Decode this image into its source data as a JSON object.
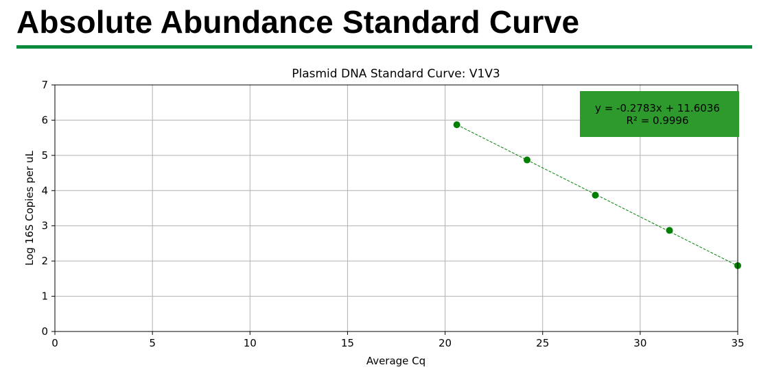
{
  "page": {
    "title": "Absolute Abundance Standard Curve",
    "rule_color": "#0a8a3c"
  },
  "chart_data": {
    "type": "scatter",
    "title": "Plasmid DNA Standard Curve: V1V3",
    "xlabel": "Average Cq",
    "ylabel": "Log 16S Copies per uL",
    "xlim": [
      0,
      35
    ],
    "ylim": [
      0,
      7
    ],
    "xticks": [
      0,
      5,
      10,
      15,
      20,
      25,
      30,
      35
    ],
    "yticks": [
      0,
      1,
      2,
      3,
      4,
      5,
      6,
      7
    ],
    "grid": true,
    "points": [
      {
        "x": 20.6,
        "y": 5.87
      },
      {
        "x": 24.2,
        "y": 4.87
      },
      {
        "x": 27.7,
        "y": 3.87
      },
      {
        "x": 31.5,
        "y": 2.87
      },
      {
        "x": 35.0,
        "y": 1.87
      }
    ],
    "fit": {
      "slope": -0.2783,
      "intercept": 11.6036,
      "x_range": [
        20.6,
        35.0
      ]
    },
    "annotation": {
      "equation": "y = -0.2783x + 11.6036",
      "r_squared": "R² = 0.9996",
      "placement": "top-right"
    },
    "colors": {
      "points": "#008000",
      "fit_line": "#008000",
      "annotation_box": "#2e9a2e",
      "annotation_text": "#ffffff",
      "grid": "#b0b0b0"
    }
  }
}
